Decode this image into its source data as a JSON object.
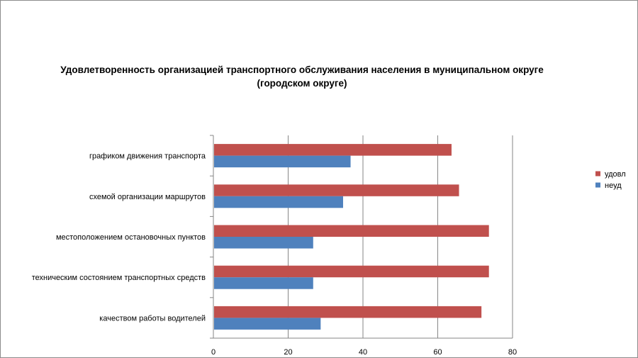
{
  "chart_data": {
    "type": "bar",
    "orientation": "horizontal",
    "title_lines": [
      "Удовлетворенность организацией транспортного обслуживания населения в муниципальном округе",
      "(городском округе)"
    ],
    "categories": [
      "графиком движения транспорта",
      "схемой организации маршрутов",
      "местоположением остановочных пунктов",
      "техническим состоянием транспортных средств",
      "качеством работы водителей"
    ],
    "series": [
      {
        "name": "удовл",
        "color": "#c0504d",
        "values": [
          63.5,
          65.5,
          73.5,
          73.5,
          71.5
        ]
      },
      {
        "name": "неуд",
        "color": "#4f81bd",
        "values": [
          36.5,
          34.5,
          26.5,
          26.5,
          28.5
        ]
      }
    ],
    "xlim": [
      0,
      80
    ],
    "xticks": [
      0,
      20,
      40,
      60,
      80
    ],
    "grid": true,
    "legend_position": "right"
  }
}
